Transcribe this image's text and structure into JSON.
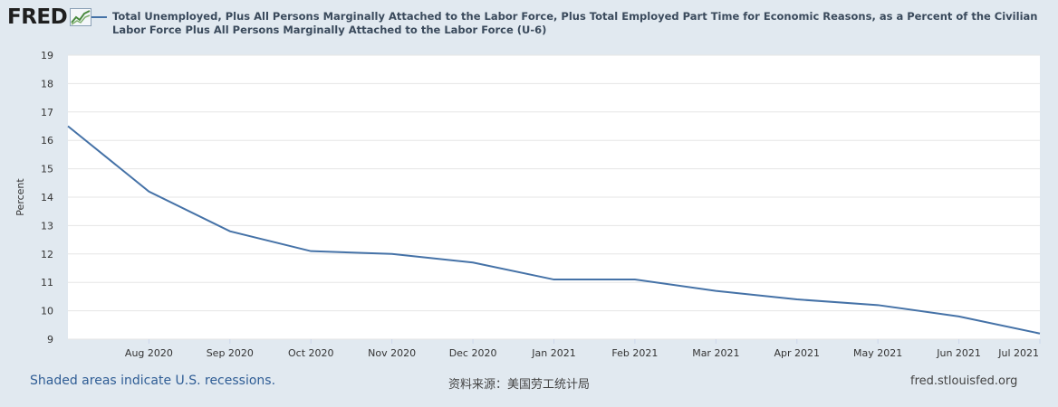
{
  "header": {
    "logo_text": "FRED",
    "legend_text": "Total Unemployed, Plus All Persons Marginally Attached to the Labor Force, Plus Total Employed Part Time for Economic Reasons, as a Percent of the Civilian Labor Force Plus All Persons Marginally Attached to the Labor Force (U-6)"
  },
  "footer": {
    "recessions_note": "Shaded areas indicate U.S. recessions.",
    "source_note": "资料来源：美国劳工统计局",
    "site": "fred.stlouisfed.org"
  },
  "colors": {
    "series": "#4572a7",
    "plot_background": "#ffffff",
    "page_background": "#e1e9f0",
    "grid": "#e6e6e6"
  },
  "chart_data": {
    "type": "line",
    "title": "",
    "xlabel": "",
    "ylabel": "Percent",
    "ylim": [
      9,
      19
    ],
    "yticks": [
      9,
      10,
      11,
      12,
      13,
      14,
      15,
      16,
      17,
      18,
      19
    ],
    "grid": true,
    "legend_position": "top",
    "x": [
      "2020-07",
      "2020-08",
      "2020-09",
      "2020-10",
      "2020-11",
      "2020-12",
      "2021-01",
      "2021-02",
      "2021-03",
      "2021-04",
      "2021-05",
      "2021-06",
      "2021-07"
    ],
    "x_tick_labels": [
      "Aug 2020",
      "Sep 2020",
      "Oct 2020",
      "Nov 2020",
      "Dec 2020",
      "Jan 2021",
      "Feb 2021",
      "Mar 2021",
      "Apr 2021",
      "May 2021",
      "Jun 2021",
      "Jul 2021"
    ],
    "series": [
      {
        "name": "Total Unemployed, Plus All Persons Marginally Attached to the Labor Force, Plus Total Employed Part Time for Economic Reasons, as a Percent of the Civilian Labor Force Plus All Persons Marginally Attached to the Labor Force (U-6)",
        "values": [
          16.5,
          14.2,
          12.8,
          12.1,
          12.0,
          11.7,
          11.1,
          11.1,
          10.7,
          10.4,
          10.2,
          9.8,
          9.2
        ]
      }
    ]
  }
}
